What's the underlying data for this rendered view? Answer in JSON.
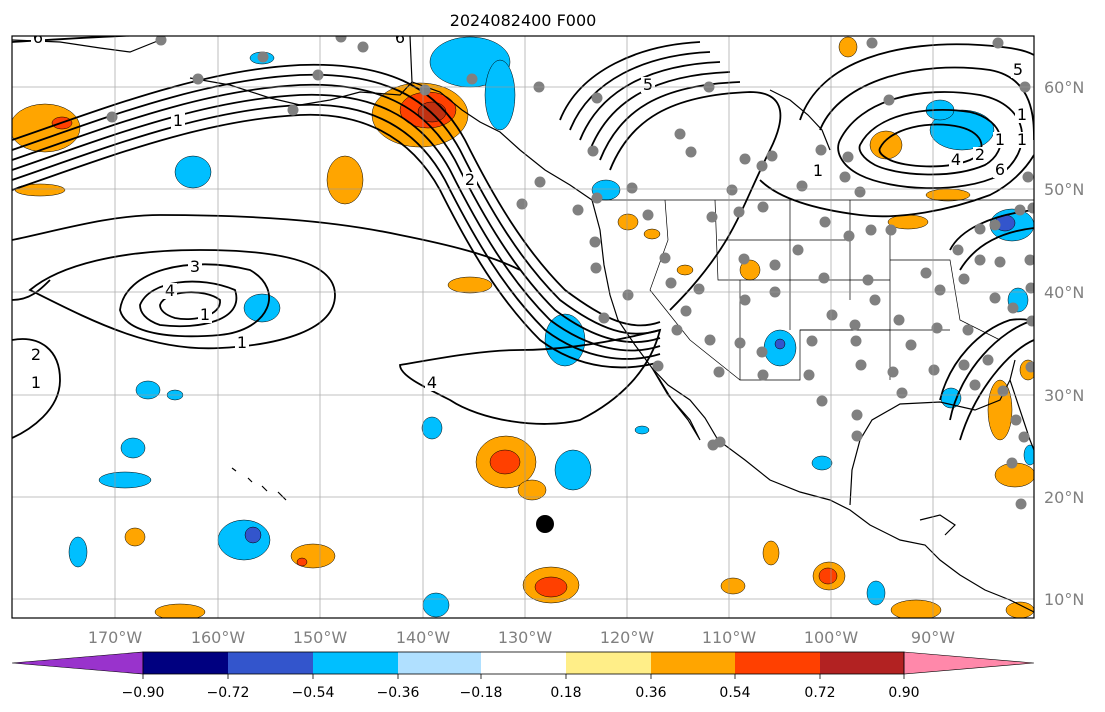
{
  "title": "2024082400 F000",
  "axes": {
    "lon_labels": [
      "170°W",
      "160°W",
      "150°W",
      "140°W",
      "130°W",
      "120°W",
      "110°W",
      "100°W",
      "90°W"
    ],
    "lat_labels": [
      "60°N",
      "50°N",
      "40°N",
      "30°N",
      "20°N",
      "10°N"
    ]
  },
  "colorbar": {
    "ticks": [
      "−0.90",
      "−0.72",
      "−0.54",
      "−0.36",
      "−0.18",
      "0.18",
      "0.36",
      "0.54",
      "0.72",
      "0.90"
    ],
    "colors": [
      "#9933cc",
      "#000080",
      "#3355cc",
      "#00bfff",
      "#b0e0ff",
      "#ffffff",
      "#ffee88",
      "#ffa500",
      "#ff4000",
      "#b22222",
      "#ff88aa"
    ]
  },
  "contour_labels": [
    "6",
    "6",
    "1",
    "2",
    "3",
    "4",
    "1",
    "1",
    "2",
    "1",
    "4",
    "5",
    "5",
    "4",
    "2",
    "1",
    "1",
    "6",
    "1",
    "1"
  ],
  "fill_colors": {
    "orange": "#ffa500",
    "red": "#ff4000",
    "darkred": "#c03010",
    "cyan": "#00bfff",
    "blue": "#3355cc",
    "lightblue": "#b0e0ff"
  }
}
